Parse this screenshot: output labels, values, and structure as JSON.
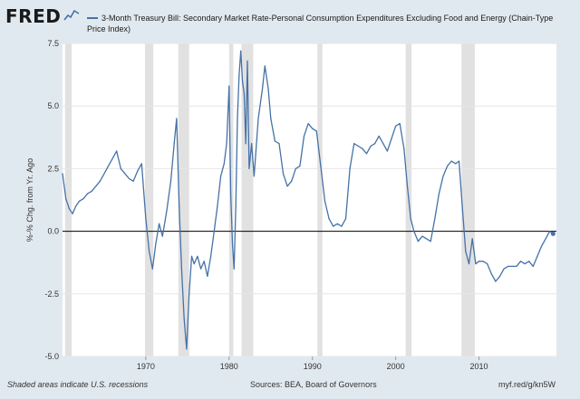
{
  "header": {
    "logo": "FRED",
    "legend_text": "3-Month Treasury Bill: Secondary Market Rate-Personal Consumption Expenditures Excluding Food and Energy (Chain-Type Price Index)"
  },
  "footer": {
    "left": "Shaded areas indicate U.S. recessions",
    "sources": "Sources: BEA, Board of Governors",
    "link": "myf.red/g/kn5W"
  },
  "colors": {
    "series": "#4572a7",
    "recession": "#e1e1e1",
    "background": "#e1e9f0",
    "zero_line": "#000000"
  },
  "chart_data": {
    "type": "line",
    "title": "3-Month Treasury Bill: Secondary Market Rate-Personal Consumption Expenditures Excluding Food and Energy (Chain-Type Price Index)",
    "ylabel": "%-% Chg. from Yr. Ago",
    "xlabel": "",
    "xlim": [
      1960.0,
      2019.3
    ],
    "ylim": [
      -5.0,
      7.5
    ],
    "yticks": [
      -5.0,
      -2.5,
      0.0,
      2.5,
      5.0,
      7.5
    ],
    "ytick_labels": [
      "-5.0",
      "-2.5",
      "0.0",
      "2.5",
      "5.0",
      "7.5"
    ],
    "xticks": [
      1970,
      1980,
      1990,
      2000,
      2010
    ],
    "xtick_labels": [
      "1970",
      "1980",
      "1990",
      "2000",
      "2010"
    ],
    "grid": "horizontal",
    "recessions": [
      [
        1960.3,
        1961.1
      ],
      [
        1969.9,
        1970.9
      ],
      [
        1973.9,
        1975.2
      ],
      [
        1980.0,
        1980.5
      ],
      [
        1981.5,
        1982.9
      ],
      [
        1990.6,
        1991.2
      ],
      [
        2001.2,
        2001.9
      ],
      [
        2007.9,
        2009.5
      ]
    ],
    "series": [
      {
        "name": "3-Month Treasury Bill: Secondary Market Rate-Personal Consumption Expenditures Excluding Food and Energy (Chain-Type Price Index)",
        "points": [
          [
            1960.0,
            2.3
          ],
          [
            1960.4,
            1.3
          ],
          [
            1960.8,
            0.9
          ],
          [
            1961.2,
            0.7
          ],
          [
            1961.6,
            1.0
          ],
          [
            1962.0,
            1.2
          ],
          [
            1962.5,
            1.3
          ],
          [
            1963.0,
            1.5
          ],
          [
            1963.5,
            1.6
          ],
          [
            1964.0,
            1.8
          ],
          [
            1964.5,
            2.0
          ],
          [
            1965.0,
            2.3
          ],
          [
            1965.5,
            2.6
          ],
          [
            1966.0,
            2.9
          ],
          [
            1966.5,
            3.2
          ],
          [
            1967.0,
            2.5
          ],
          [
            1967.5,
            2.3
          ],
          [
            1968.0,
            2.1
          ],
          [
            1968.5,
            2.0
          ],
          [
            1969.0,
            2.4
          ],
          [
            1969.5,
            2.7
          ],
          [
            1970.0,
            0.5
          ],
          [
            1970.4,
            -0.8
          ],
          [
            1970.8,
            -1.5
          ],
          [
            1971.2,
            -0.5
          ],
          [
            1971.6,
            0.3
          ],
          [
            1972.0,
            -0.2
          ],
          [
            1972.5,
            0.8
          ],
          [
            1973.0,
            2.0
          ],
          [
            1973.4,
            3.5
          ],
          [
            1973.7,
            4.5
          ],
          [
            1974.0,
            1.0
          ],
          [
            1974.3,
            -1.5
          ],
          [
            1974.6,
            -3.5
          ],
          [
            1974.9,
            -4.7
          ],
          [
            1975.2,
            -2.5
          ],
          [
            1975.5,
            -1.0
          ],
          [
            1975.8,
            -1.3
          ],
          [
            1976.2,
            -1.0
          ],
          [
            1976.6,
            -1.5
          ],
          [
            1977.0,
            -1.2
          ],
          [
            1977.4,
            -1.8
          ],
          [
            1977.8,
            -1.0
          ],
          [
            1978.2,
            0.0
          ],
          [
            1978.6,
            1.0
          ],
          [
            1979.0,
            2.2
          ],
          [
            1979.4,
            2.7
          ],
          [
            1979.7,
            3.5
          ],
          [
            1980.0,
            5.8
          ],
          [
            1980.2,
            1.5
          ],
          [
            1980.4,
            -0.5
          ],
          [
            1980.6,
            -1.5
          ],
          [
            1980.8,
            1.0
          ],
          [
            1981.0,
            4.5
          ],
          [
            1981.2,
            6.2
          ],
          [
            1981.4,
            7.2
          ],
          [
            1981.6,
            6.0
          ],
          [
            1981.8,
            5.5
          ],
          [
            1982.0,
            3.5
          ],
          [
            1982.2,
            6.8
          ],
          [
            1982.4,
            2.5
          ],
          [
            1982.7,
            3.5
          ],
          [
            1983.0,
            2.2
          ],
          [
            1983.5,
            4.5
          ],
          [
            1984.0,
            5.7
          ],
          [
            1984.3,
            6.6
          ],
          [
            1984.7,
            5.7
          ],
          [
            1985.0,
            4.5
          ],
          [
            1985.5,
            3.6
          ],
          [
            1986.0,
            3.5
          ],
          [
            1986.5,
            2.3
          ],
          [
            1987.0,
            1.8
          ],
          [
            1987.5,
            2.0
          ],
          [
            1988.0,
            2.5
          ],
          [
            1988.5,
            2.6
          ],
          [
            1989.0,
            3.8
          ],
          [
            1989.5,
            4.3
          ],
          [
            1990.0,
            4.1
          ],
          [
            1990.5,
            4.0
          ],
          [
            1991.0,
            2.6
          ],
          [
            1991.5,
            1.2
          ],
          [
            1992.0,
            0.5
          ],
          [
            1992.5,
            0.2
          ],
          [
            1993.0,
            0.3
          ],
          [
            1993.5,
            0.2
          ],
          [
            1994.0,
            0.5
          ],
          [
            1994.5,
            2.5
          ],
          [
            1995.0,
            3.5
          ],
          [
            1995.5,
            3.4
          ],
          [
            1996.0,
            3.3
          ],
          [
            1996.5,
            3.1
          ],
          [
            1997.0,
            3.4
          ],
          [
            1997.5,
            3.5
          ],
          [
            1998.0,
            3.8
          ],
          [
            1998.5,
            3.5
          ],
          [
            1999.0,
            3.2
          ],
          [
            1999.5,
            3.7
          ],
          [
            2000.0,
            4.2
          ],
          [
            2000.5,
            4.3
          ],
          [
            2001.0,
            3.3
          ],
          [
            2001.4,
            1.8
          ],
          [
            2001.8,
            0.5
          ],
          [
            2002.2,
            0.0
          ],
          [
            2002.7,
            -0.4
          ],
          [
            2003.2,
            -0.2
          ],
          [
            2003.7,
            -0.3
          ],
          [
            2004.2,
            -0.4
          ],
          [
            2004.7,
            0.5
          ],
          [
            2005.2,
            1.5
          ],
          [
            2005.7,
            2.2
          ],
          [
            2006.2,
            2.6
          ],
          [
            2006.7,
            2.8
          ],
          [
            2007.2,
            2.7
          ],
          [
            2007.6,
            2.8
          ],
          [
            2008.0,
            1.0
          ],
          [
            2008.4,
            -0.8
          ],
          [
            2008.8,
            -1.3
          ],
          [
            2009.2,
            -0.3
          ],
          [
            2009.6,
            -1.3
          ],
          [
            2010.0,
            -1.2
          ],
          [
            2010.5,
            -1.2
          ],
          [
            2011.0,
            -1.3
          ],
          [
            2011.5,
            -1.7
          ],
          [
            2012.0,
            -2.0
          ],
          [
            2012.5,
            -1.8
          ],
          [
            2013.0,
            -1.5
          ],
          [
            2013.5,
            -1.4
          ],
          [
            2014.0,
            -1.4
          ],
          [
            2014.5,
            -1.4
          ],
          [
            2015.0,
            -1.2
          ],
          [
            2015.5,
            -1.3
          ],
          [
            2016.0,
            -1.2
          ],
          [
            2016.5,
            -1.4
          ],
          [
            2017.0,
            -1.0
          ],
          [
            2017.5,
            -0.6
          ],
          [
            2018.0,
            -0.3
          ],
          [
            2018.5,
            0.0
          ],
          [
            2018.9,
            -0.1
          ]
        ]
      }
    ]
  }
}
